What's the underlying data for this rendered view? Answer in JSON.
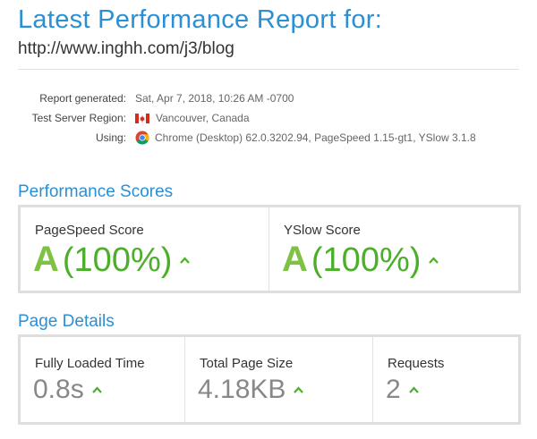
{
  "header": {
    "title": "Latest Performance Report for:",
    "url": "http://www.inghh.com/j3/blog"
  },
  "meta": {
    "report_generated_label": "Report generated:",
    "report_generated_value": "Sat, Apr 7, 2018, 10:26 AM -0700",
    "region_label": "Test Server Region:",
    "region_value": "Vancouver, Canada",
    "using_label": "Using:",
    "using_value": "Chrome (Desktop) 62.0.3202.94, PageSpeed 1.15-gt1, YSlow 3.1.8"
  },
  "performance": {
    "title": "Performance Scores",
    "pagespeed": {
      "label": "PageSpeed Score",
      "grade": "A",
      "percent": "(100%)"
    },
    "yslow": {
      "label": "YSlow Score",
      "grade": "A",
      "percent": "(100%)"
    }
  },
  "details": {
    "title": "Page Details",
    "load_time": {
      "label": "Fully Loaded Time",
      "value": "0.8s"
    },
    "page_size": {
      "label": "Total Page Size",
      "value": "4.18KB"
    },
    "requests": {
      "label": "Requests",
      "value": "2"
    }
  },
  "colors": {
    "accent": "#2a8fd3",
    "grade_green": "#7dc242",
    "percent_green": "#4caf2a"
  },
  "icons": {
    "flag": "canada-flag-icon",
    "browser": "chrome-icon",
    "trend": "arrow-up-icon"
  }
}
